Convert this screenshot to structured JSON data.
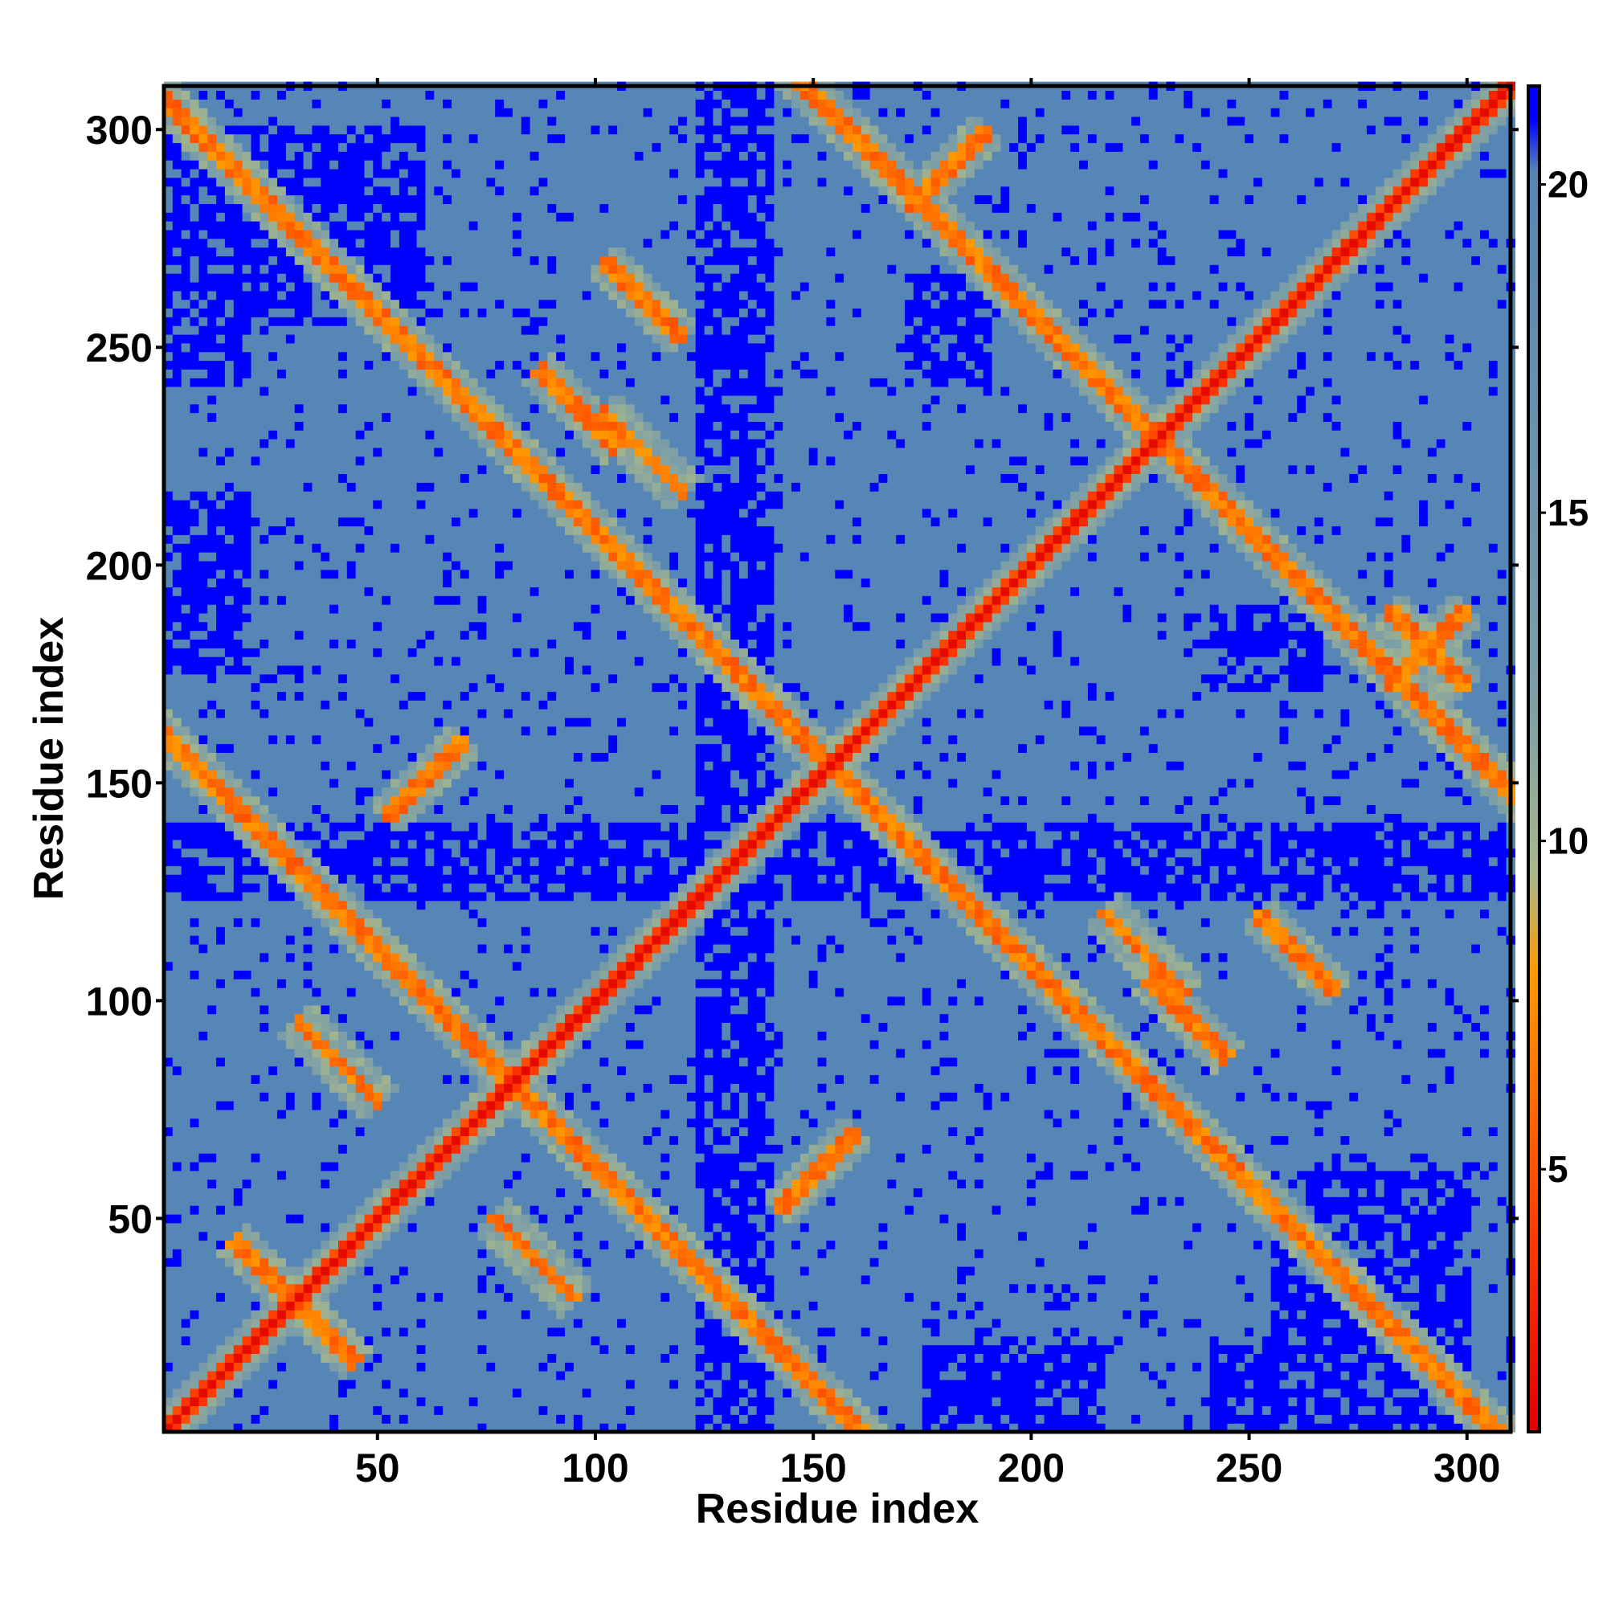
{
  "chart_data": {
    "type": "heatmap",
    "title": "",
    "xlabel": "Residue index",
    "ylabel": "Residue index",
    "xlim": [
      1,
      310
    ],
    "ylim": [
      1,
      310
    ],
    "xticks": [
      50,
      100,
      150,
      200,
      250,
      300
    ],
    "yticks": [
      50,
      100,
      150,
      200,
      250,
      300
    ],
    "colorbar": {
      "range": [
        1,
        21.5
      ],
      "ticks": [
        5,
        10,
        15,
        20
      ],
      "stops": [
        {
          "value": 1,
          "color": "#e00000"
        },
        {
          "value": 4,
          "color": "#ff3a00"
        },
        {
          "value": 8,
          "color": "#ff9a00"
        },
        {
          "value": 9.5,
          "color": "#a8b88a"
        },
        {
          "value": 12,
          "color": "#7e9fa6"
        },
        {
          "value": 20.2,
          "color": "#5585b5"
        },
        {
          "value": 21,
          "color": "#0000ff"
        }
      ]
    },
    "description_colors": {
      "contact": "#e52000",
      "medium": "#b8c088",
      "background": "#5585b5",
      "far": "#0000ff"
    },
    "features": {
      "off_diagonal_contacts": [
        {
          "i": 25,
          "j": 35,
          "orientation": "anti"
        },
        {
          "i": 35,
          "j": 25,
          "orientation": "anti"
        },
        {
          "i": 80,
          "j": 80,
          "orientation": "cross"
        },
        {
          "i": 40,
          "j": 85,
          "orientation": "anti"
        },
        {
          "i": 85,
          "j": 40,
          "orientation": "anti"
        },
        {
          "i": 153,
          "j": 153,
          "orientation": "cross"
        },
        {
          "i": 228,
          "j": 228,
          "orientation": "cross"
        },
        {
          "i": 110,
          "j": 260,
          "orientation": "anti"
        },
        {
          "i": 260,
          "j": 110,
          "orientation": "anti"
        },
        {
          "i": 60,
          "j": 150,
          "orientation": "para"
        },
        {
          "i": 150,
          "j": 60,
          "orientation": "para"
        },
        {
          "i": 235,
          "j": 95,
          "orientation": "anti"
        },
        {
          "i": 95,
          "j": 235,
          "orientation": "anti"
        },
        {
          "i": 180,
          "j": 290,
          "orientation": "para"
        },
        {
          "i": 290,
          "j": 180,
          "orientation": "para"
        },
        {
          "i": 110,
          "j": 225,
          "orientation": "anti"
        },
        {
          "i": 225,
          "j": 110,
          "orientation": "anti"
        },
        {
          "i": 290,
          "j": 180,
          "orientation": "anti"
        }
      ],
      "far_regions": [
        {
          "i": [
            1,
            310
          ],
          "j": [
            122,
            140
          ]
        },
        {
          "i": [
            122,
            140
          ],
          "j": [
            1,
            310
          ]
        },
        {
          "i": [
            1,
            20
          ],
          "j": [
            175,
            215
          ]
        },
        {
          "i": [
            175,
            215
          ],
          "j": [
            1,
            20
          ]
        },
        {
          "i": [
            1,
            20
          ],
          "j": [
            240,
            290
          ]
        },
        {
          "i": [
            240,
            290
          ],
          "j": [
            1,
            20
          ]
        },
        {
          "i": [
            240,
            265
          ],
          "j": [
            170,
            190
          ]
        },
        {
          "i": [
            170,
            190
          ],
          "j": [
            240,
            265
          ]
        },
        {
          "i": [
            1,
            60
          ],
          "j": [
            255,
            300
          ]
        },
        {
          "i": [
            255,
            300
          ],
          "j": [
            1,
            60
          ]
        }
      ]
    }
  }
}
